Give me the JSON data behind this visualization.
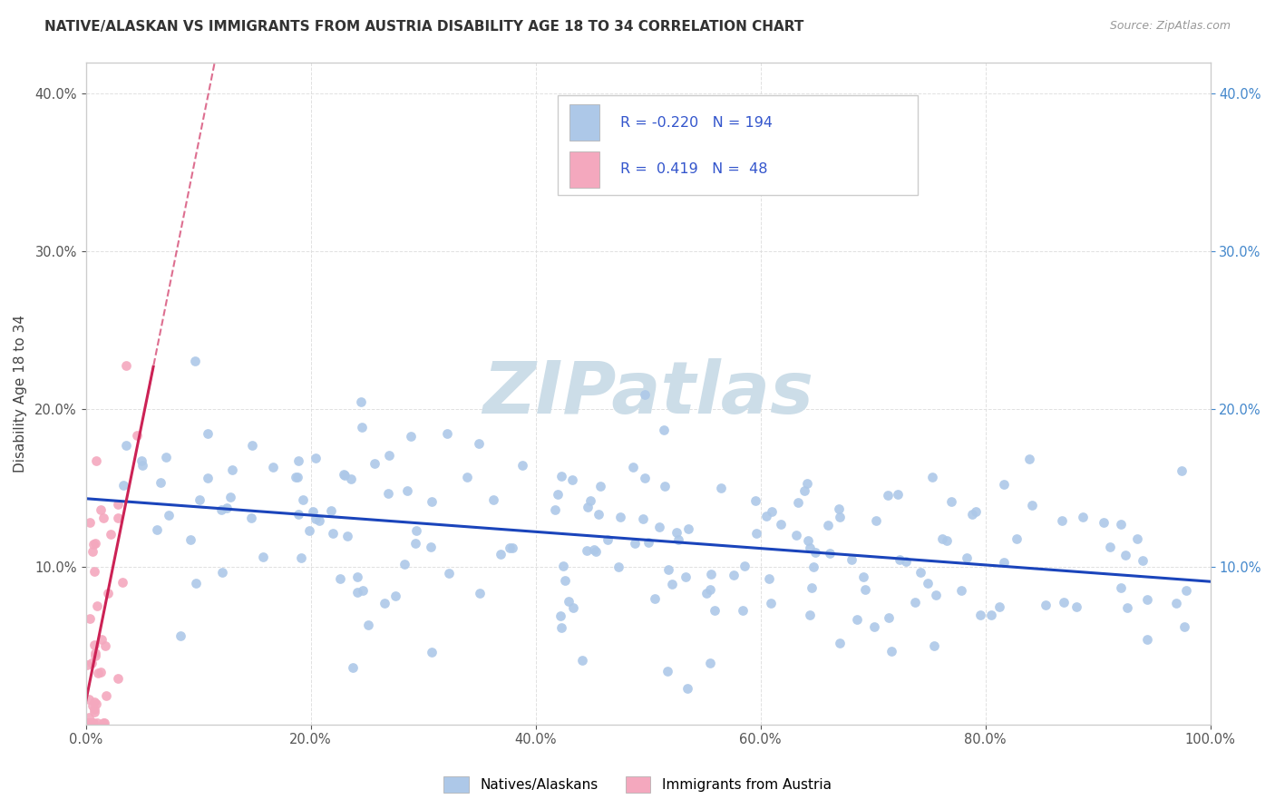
{
  "title": "NATIVE/ALASKAN VS IMMIGRANTS FROM AUSTRIA DISABILITY AGE 18 TO 34 CORRELATION CHART",
  "source": "Source: ZipAtlas.com",
  "ylabel": "Disability Age 18 to 34",
  "xmin": 0.0,
  "xmax": 1.0,
  "ymin": 0.0,
  "ymax": 0.42,
  "legend_label1": "Natives/Alaskans",
  "legend_label2": "Immigrants from Austria",
  "color_blue": "#adc8e8",
  "color_pink": "#f4a8be",
  "trendline_blue": "#1a44bb",
  "trendline_pink": "#cc2255",
  "R_blue": -0.22,
  "N_blue": 194,
  "R_pink": 0.419,
  "N_pink": 48,
  "watermark": "ZIPatlas",
  "watermark_color": "#ccdde8"
}
